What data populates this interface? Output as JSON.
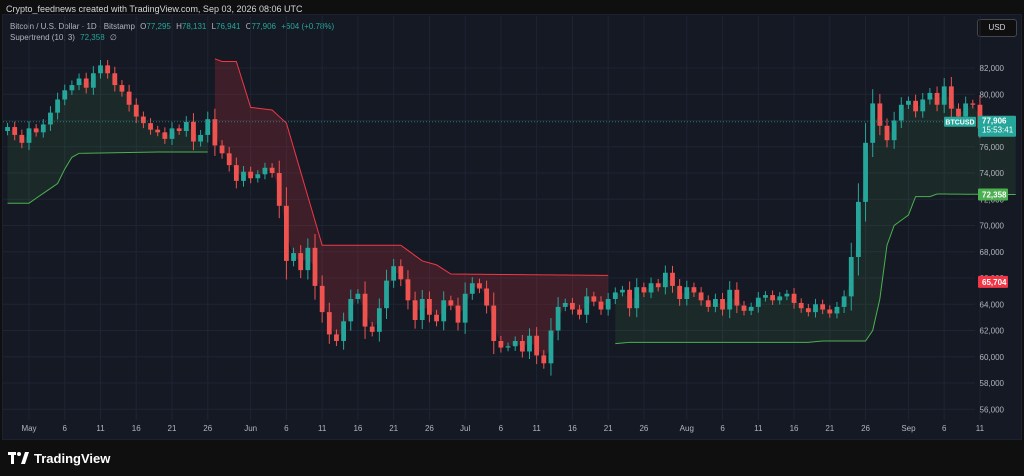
{
  "header": {
    "created_text": "Crypto_feednews created with TradingView.com, Sep 03, 2026 08:06 UTC"
  },
  "legend": {
    "symbol": "Bitcoin / U.S. Dollar · 1D · Bitstamp",
    "o_label": "O",
    "o_value": "77,295",
    "h_label": "H",
    "h_value": "78,131",
    "l_label": "L",
    "l_value": "76,941",
    "c_label": "C",
    "c_value": "77,906",
    "change": "+604 (+0.78%)",
    "indicator": "Supertrend (10, 3)",
    "indicator_value": "72,358",
    "indicator_suffix": "∅"
  },
  "currency_button": "USD",
  "price_tags": {
    "symbol_label": "BTCUSD",
    "last_price": "77,906",
    "countdown": "15:53:41",
    "supertrend_up": "72,358",
    "supertrend_down": "65,704"
  },
  "footer": {
    "brand": "TradingView"
  },
  "colors": {
    "up": "#26a69a",
    "down": "#ef5350",
    "supertrend_up_line": "#4caf50",
    "supertrend_down_line": "#f23645",
    "up_fill": "rgba(76,175,80,0.12)",
    "down_fill": "rgba(242,54,69,0.18)",
    "grid": "#1f2433",
    "axis_text": "#b2b5be"
  },
  "chart_data": {
    "type": "candlestick",
    "title": "Bitcoin / U.S. Dollar · 1D · Bitstamp",
    "ylim": [
      55000,
      83500
    ],
    "y_ticks": [
      "82,000",
      "80,000",
      "78,000",
      "76,000",
      "74,000",
      "72,000",
      "70,000",
      "68,000",
      "66,000",
      "64,000",
      "62,000",
      "60,000",
      "58,000",
      "56,000"
    ],
    "x_ticks": [
      {
        "day": 0,
        "label": "May"
      },
      {
        "day": 5,
        "label": "6"
      },
      {
        "day": 10,
        "label": "11"
      },
      {
        "day": 15,
        "label": "16"
      },
      {
        "day": 20,
        "label": "21"
      },
      {
        "day": 25,
        "label": "26"
      },
      {
        "day": 31,
        "label": "Jun"
      },
      {
        "day": 36,
        "label": "6"
      },
      {
        "day": 41,
        "label": "11"
      },
      {
        "day": 46,
        "label": "16"
      },
      {
        "day": 51,
        "label": "21"
      },
      {
        "day": 56,
        "label": "26"
      },
      {
        "day": 61,
        "label": "Jul"
      },
      {
        "day": 66,
        "label": "6"
      },
      {
        "day": 71,
        "label": "11"
      },
      {
        "day": 76,
        "label": "16"
      },
      {
        "day": 81,
        "label": "21"
      },
      {
        "day": 86,
        "label": "26"
      },
      {
        "day": 92,
        "label": "Aug"
      },
      {
        "day": 97,
        "label": "6"
      },
      {
        "day": 102,
        "label": "11"
      },
      {
        "day": 107,
        "label": "16"
      },
      {
        "day": 112,
        "label": "21"
      },
      {
        "day": 117,
        "label": "26"
      },
      {
        "day": 123,
        "label": "Sep"
      },
      {
        "day": 128,
        "label": "6"
      },
      {
        "day": 133,
        "label": "11"
      }
    ],
    "candles_start_day": -3,
    "close_series": [
      77500,
      76900,
      76300,
      77400,
      77100,
      77700,
      78600,
      79600,
      80300,
      80700,
      81200,
      80500,
      81600,
      82200,
      81600,
      80700,
      80200,
      79200,
      78300,
      77800,
      77300,
      77100,
      76600,
      77400,
      77200,
      77900,
      76400,
      76900,
      78100,
      76100,
      75500,
      74600,
      73400,
      74100,
      73600,
      73900,
      74400,
      74000,
      71500,
      67300,
      67900,
      66600,
      68300,
      65400,
      63400,
      61700,
      61200,
      62700,
      64400,
      64800,
      62300,
      61900,
      63700,
      65800,
      66900,
      65900,
      64300,
      62800,
      64400,
      63200,
      62700,
      64300,
      63900,
      62600,
      64800,
      65600,
      65200,
      63900,
      61200,
      60700,
      60800,
      61200,
      60400,
      61600,
      60100,
      59500,
      62000,
      63800,
      64100,
      63600,
      63200,
      64600,
      64200,
      63600,
      64400,
      64900,
      65100,
      63700,
      65300,
      64900,
      65600,
      65300,
      66400,
      65400,
      64400,
      65300,
      64900,
      64300,
      63800,
      64400,
      63600,
      65100,
      63900,
      63500,
      63800,
      64500,
      64700,
      64300,
      64600,
      64800,
      64100,
      63700,
      63400,
      64000,
      63600,
      63300,
      63800,
      64600,
      67600,
      71800,
      76300,
      79300,
      77600,
      76500,
      78000,
      79200,
      79500,
      78700,
      79600,
      80100,
      79200,
      80600,
      78900,
      78300,
      79300,
      79200,
      77400,
      77300,
      77906
    ],
    "supertrend_bands": [
      {
        "trend": "up",
        "points": [
          [
            -3,
            71700
          ],
          [
            -2,
            71700
          ],
          [
            0,
            71700
          ],
          [
            4,
            73200
          ],
          [
            5,
            74300
          ],
          [
            6,
            75200
          ],
          [
            7,
            75500
          ],
          [
            18,
            75600
          ],
          [
            25,
            75600
          ]
        ]
      },
      {
        "trend": "down",
        "points": [
          [
            26,
            82700
          ],
          [
            27,
            82500
          ],
          [
            29,
            82500
          ],
          [
            31,
            79000
          ],
          [
            34,
            78800
          ],
          [
            36,
            77800
          ],
          [
            41,
            68500
          ],
          [
            52,
            68500
          ],
          [
            55,
            67300
          ],
          [
            57,
            67000
          ],
          [
            59,
            66300
          ],
          [
            81,
            66200
          ]
        ]
      },
      {
        "trend": "up",
        "points": [
          [
            82,
            61000
          ],
          [
            84,
            61100
          ],
          [
            109,
            61100
          ],
          [
            111,
            61200
          ],
          [
            117,
            61200
          ],
          [
            118,
            62000
          ],
          [
            119,
            64400
          ],
          [
            120,
            68500
          ],
          [
            121,
            70000
          ],
          [
            123,
            70800
          ],
          [
            124,
            72200
          ],
          [
            126,
            72200
          ],
          [
            127,
            72400
          ],
          [
            138,
            72358
          ]
        ]
      }
    ]
  }
}
